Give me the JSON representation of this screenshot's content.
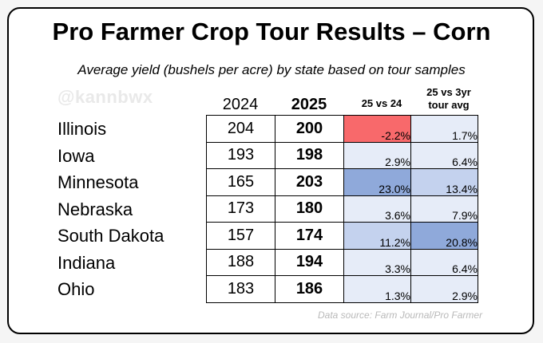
{
  "title": "Pro Farmer Crop Tour Results – Corn",
  "subtitle": "Average yield (bushels per acre) by state based on tour samples",
  "watermark": "@kannbwx",
  "headers": {
    "y2024": "2024",
    "y2025": "2025",
    "vs24": "25 vs 24",
    "vs3yr_line1": "25 vs 3yr",
    "vs3yr_line2": "tour avg"
  },
  "rows": [
    {
      "state": "Illinois",
      "y2024": "204",
      "y2025": "200",
      "vs24": "-2.2%",
      "vs3yr": "1.7%"
    },
    {
      "state": "Iowa",
      "y2024": "193",
      "y2025": "198",
      "vs24": "2.9%",
      "vs3yr": "6.4%"
    },
    {
      "state": "Minnesota",
      "y2024": "165",
      "y2025": "203",
      "vs24": "23.0%",
      "vs3yr": "13.4%"
    },
    {
      "state": "Nebraska",
      "y2024": "173",
      "y2025": "180",
      "vs24": "3.6%",
      "vs3yr": "7.9%"
    },
    {
      "state": "South Dakota",
      "y2024": "157",
      "y2025": "174",
      "vs24": "11.2%",
      "vs3yr": "20.8%"
    },
    {
      "state": "Indiana",
      "y2024": "188",
      "y2025": "194",
      "vs24": "3.3%",
      "vs3yr": "6.4%"
    },
    {
      "state": "Ohio",
      "y2024": "183",
      "y2025": "186",
      "vs24": "1.3%",
      "vs3yr": "2.9%"
    }
  ],
  "colors": {
    "negative": "#f8696b",
    "positive_strong": "#8fa9da",
    "positive_mid": "#c4d2ee",
    "positive_light": "#e6ecf8"
  },
  "source": "Data source: Farm Journal/Pro Farmer"
}
